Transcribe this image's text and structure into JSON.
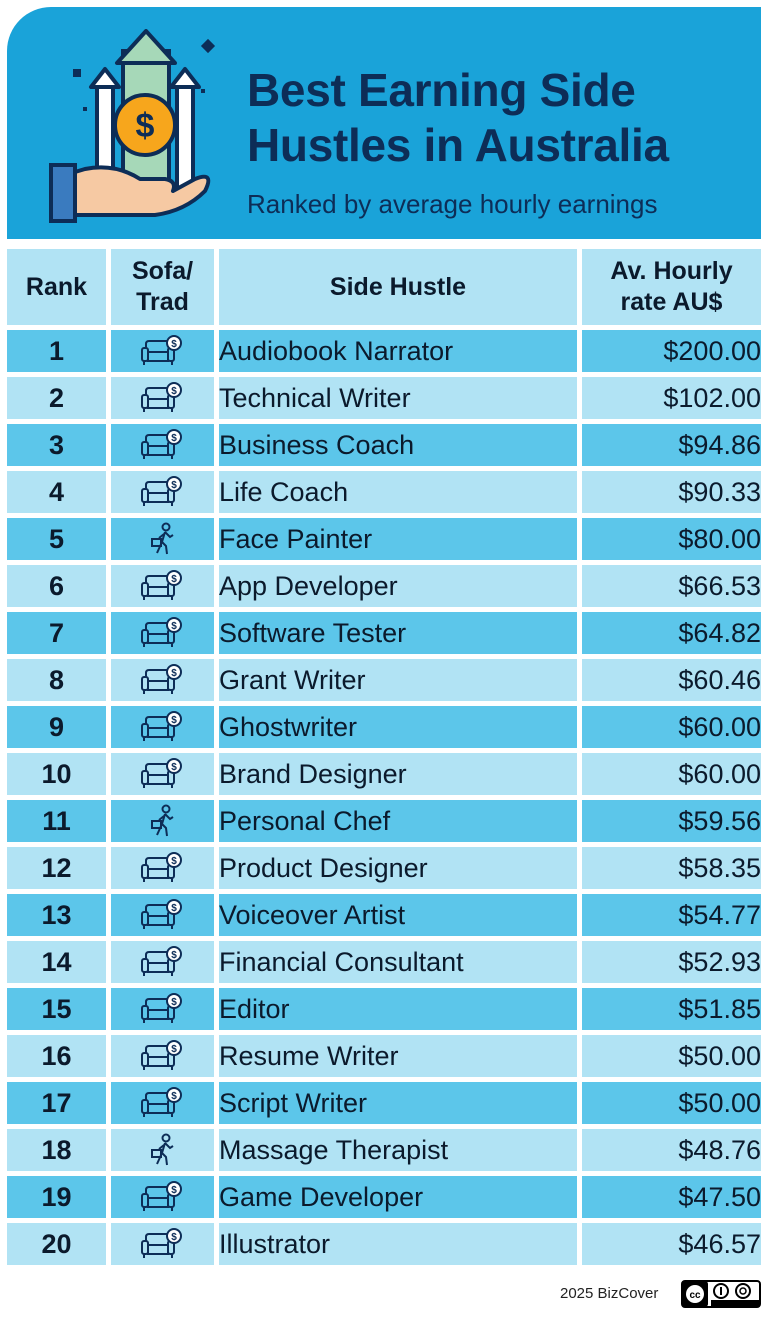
{
  "header": {
    "title": "Best Earning Side Hustles in Australia",
    "subtitle": "Ranked by average hourly earnings",
    "logo_icon": "hand-holding-coin-arrows-icon"
  },
  "colors": {
    "header_bg": "#1aa3d9",
    "title_text": "#0d2d57",
    "row_dark": "#5cc6ea",
    "row_light": "#b1e3f4"
  },
  "table": {
    "columns": [
      "Rank",
      "Sofa/ Trad",
      "Side Hustle",
      "Av. Hourly rate AU$"
    ],
    "rows": [
      {
        "rank": "1",
        "type": "sofa",
        "hustle": "Audiobook Narrator",
        "rate": "$200.00"
      },
      {
        "rank": "2",
        "type": "sofa",
        "hustle": "Technical Writer",
        "rate": "$102.00"
      },
      {
        "rank": "3",
        "type": "sofa",
        "hustle": "Business Coach",
        "rate": "$94.86"
      },
      {
        "rank": "4",
        "type": "sofa",
        "hustle": "Life Coach",
        "rate": "$90.33"
      },
      {
        "rank": "5",
        "type": "trad",
        "hustle": "Face Painter",
        "rate": "$80.00"
      },
      {
        "rank": "6",
        "type": "sofa",
        "hustle": "App Developer",
        "rate": "$66.53"
      },
      {
        "rank": "7",
        "type": "sofa",
        "hustle": "Software Tester",
        "rate": "$64.82"
      },
      {
        "rank": "8",
        "type": "sofa",
        "hustle": "Grant Writer",
        "rate": "$60.46"
      },
      {
        "rank": "9",
        "type": "sofa",
        "hustle": "Ghostwriter",
        "rate": "$60.00"
      },
      {
        "rank": "10",
        "type": "sofa",
        "hustle": "Brand Designer",
        "rate": "$60.00"
      },
      {
        "rank": "11",
        "type": "trad",
        "hustle": "Personal Chef",
        "rate": "$59.56"
      },
      {
        "rank": "12",
        "type": "sofa",
        "hustle": "Product Designer",
        "rate": "$58.35"
      },
      {
        "rank": "13",
        "type": "sofa",
        "hustle": "Voiceover Artist",
        "rate": "$54.77"
      },
      {
        "rank": "14",
        "type": "sofa",
        "hustle": "Financial Consultant",
        "rate": "$52.93"
      },
      {
        "rank": "15",
        "type": "sofa",
        "hustle": "Editor",
        "rate": "$51.85"
      },
      {
        "rank": "16",
        "type": "sofa",
        "hustle": "Resume Writer",
        "rate": "$50.00"
      },
      {
        "rank": "17",
        "type": "sofa",
        "hustle": "Script Writer",
        "rate": "$50.00"
      },
      {
        "rank": "18",
        "type": "trad",
        "hustle": "Massage Therapist",
        "rate": "$48.76"
      },
      {
        "rank": "19",
        "type": "sofa",
        "hustle": "Game Developer",
        "rate": "$47.50"
      },
      {
        "rank": "20",
        "type": "sofa",
        "hustle": "Illustrator",
        "rate": "$46.57"
      }
    ]
  },
  "chart_data": {
    "type": "table",
    "title": "Best Earning Side Hustles in Australia",
    "subtitle": "Ranked by average hourly earnings",
    "columns": [
      "Rank",
      "Sofa/ Trad",
      "Side Hustle",
      "Av. Hourly rate AU$"
    ],
    "categories": [
      "Audiobook Narrator",
      "Technical Writer",
      "Business Coach",
      "Life Coach",
      "Face Painter",
      "App Developer",
      "Software Tester",
      "Grant Writer",
      "Ghostwriter",
      "Brand Designer",
      "Personal Chef",
      "Product Designer",
      "Voiceover Artist",
      "Financial Consultant",
      "Editor",
      "Resume Writer",
      "Script Writer",
      "Massage Therapist",
      "Game Developer",
      "Illustrator"
    ],
    "values": [
      200.0,
      102.0,
      94.86,
      90.33,
      80.0,
      66.53,
      64.82,
      60.46,
      60.0,
      60.0,
      59.56,
      58.35,
      54.77,
      52.93,
      51.85,
      50.0,
      50.0,
      48.76,
      47.5,
      46.57
    ]
  },
  "icons": {
    "sofa": "sofa-with-coin-icon",
    "trad": "walking-person-with-briefcase-icon"
  },
  "footer": {
    "credit": "2025 BizCover",
    "license_icon": "cc-by-sa-icon"
  }
}
